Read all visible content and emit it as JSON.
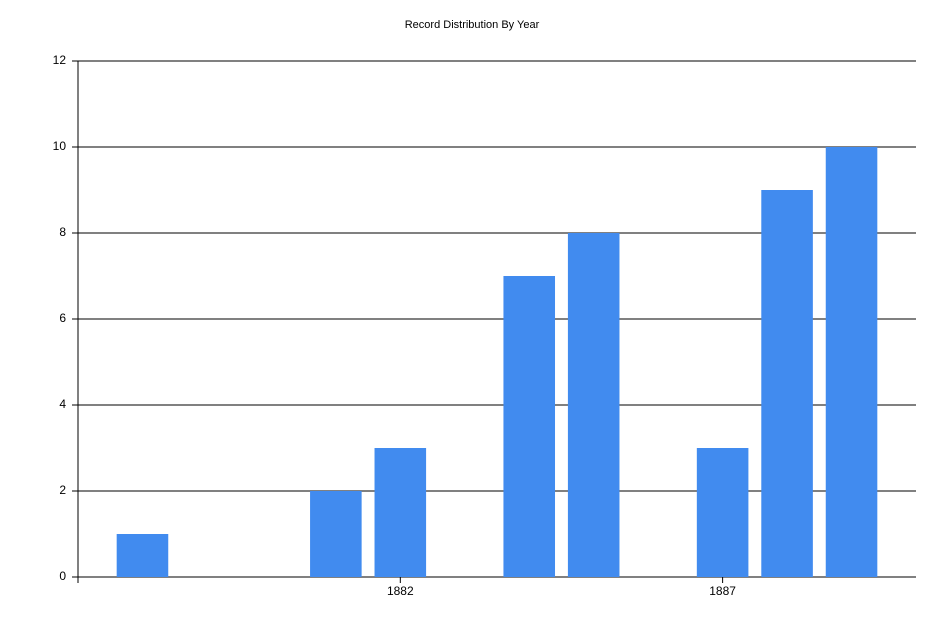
{
  "chart_data": {
    "type": "bar",
    "title": "Record Distribution By Year",
    "x": [
      1878,
      1881,
      1882,
      1884,
      1885,
      1887,
      1888,
      1889
    ],
    "values": [
      1,
      2,
      3,
      7,
      8,
      3,
      9,
      10
    ],
    "color": "#418bef",
    "xlim": [
      1877,
      1890
    ],
    "xticks": [
      1882,
      1887
    ],
    "ylim": [
      0,
      12
    ],
    "yticks": [
      0,
      2,
      4,
      6,
      8,
      10,
      12
    ],
    "grid": true
  }
}
